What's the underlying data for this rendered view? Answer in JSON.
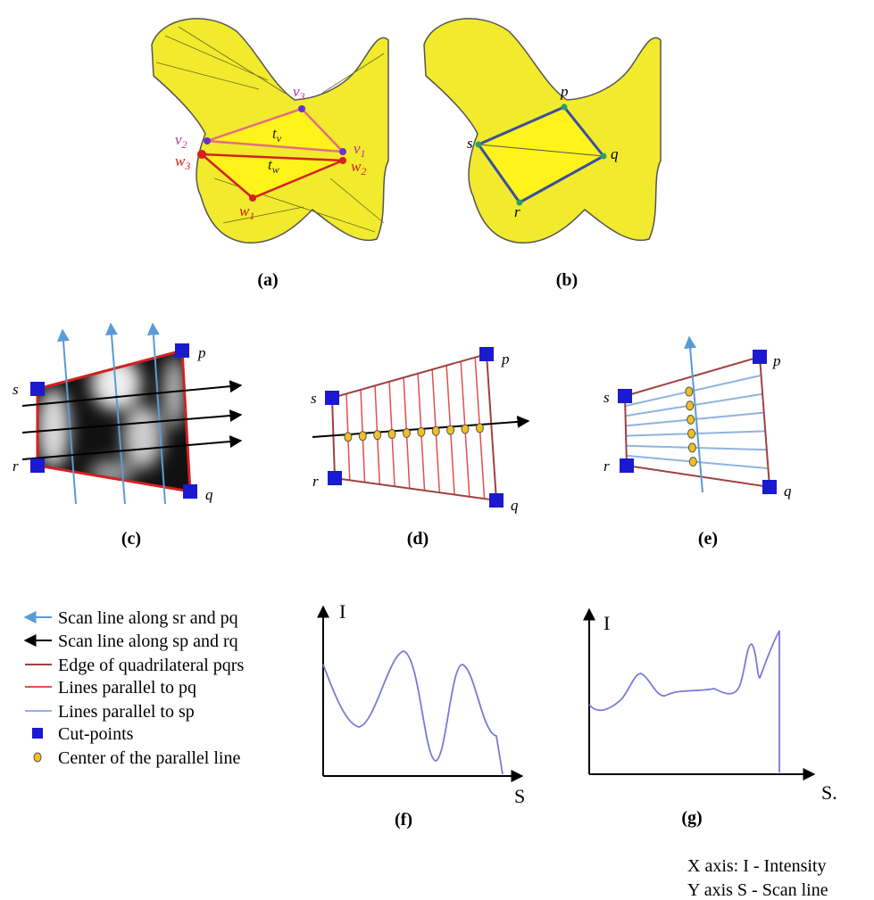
{
  "panels": [
    {
      "caption": "(a)",
      "labels": [
        {
          "base": "v",
          "sub": "3"
        },
        {
          "base": "t",
          "sub": "v"
        },
        {
          "base": "v",
          "sub": "2"
        },
        {
          "base": "v",
          "sub": "1"
        },
        {
          "base": "w",
          "sub": "3"
        },
        {
          "base": "t",
          "sub": "w"
        },
        {
          "base": "w",
          "sub": "2"
        },
        {
          "base": "w",
          "sub": "1"
        }
      ]
    },
    {
      "caption": "(b)",
      "labels": [
        "p",
        "s",
        "q",
        "r"
      ]
    },
    {
      "caption": "(c)",
      "labels": [
        "s",
        "p",
        "r",
        "q"
      ]
    },
    {
      "caption": "(d)",
      "labels": [
        "s",
        "p",
        "r",
        "q"
      ]
    },
    {
      "caption": "(e)",
      "labels": [
        "s",
        "p",
        "r",
        "q"
      ]
    },
    {
      "caption": "(f)",
      "axis_labels": [
        "I",
        "S"
      ]
    },
    {
      "caption": "(g)",
      "axis_labels": [
        "I",
        "S."
      ]
    }
  ],
  "legend": [
    "Scan line along sr and pq",
    "Scan line along sp and rq",
    "Edge of quadrilateral pqrs",
    "Lines parallel to pq",
    "Lines parallel to sp",
    "Cut-points",
    "Center of the parallel line"
  ],
  "notes": [
    "X axis: I - Intensity",
    "Y axis S - Scan line"
  ]
}
